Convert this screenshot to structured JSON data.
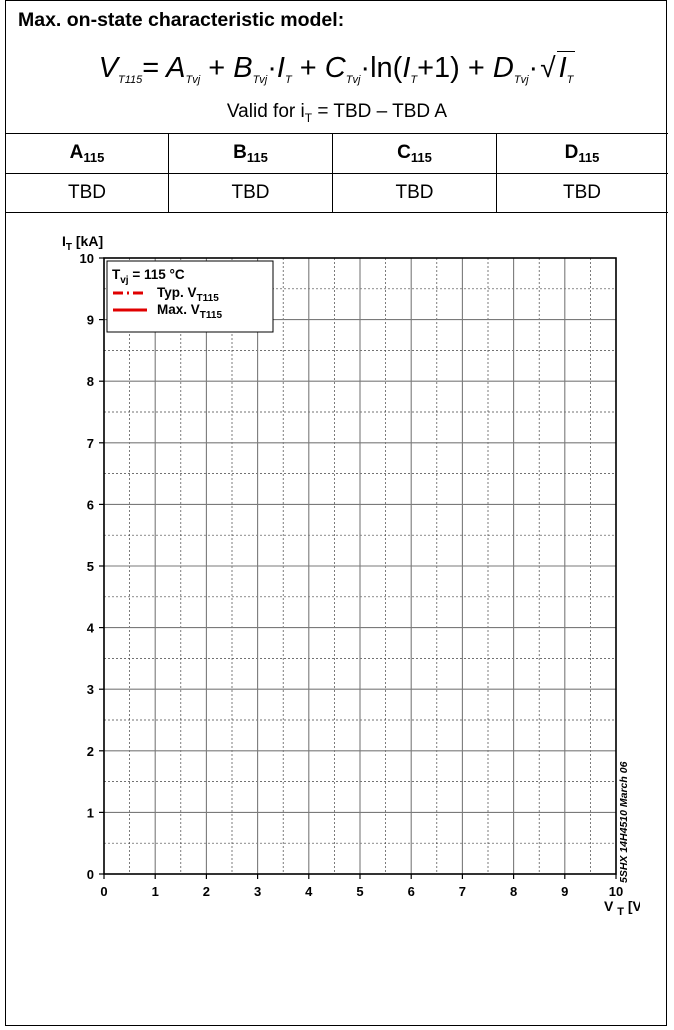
{
  "title": "Max. on-state characteristic model:",
  "formula": {
    "lhs": "V",
    "lhs_sub": "T115",
    "eq": "=",
    "terms": [
      "A",
      "B",
      "C",
      "D"
    ],
    "term_sub": "Tvj",
    "var": "I",
    "var_sub": "T",
    "plus": "+",
    "dot": "·",
    "ln": "ln(",
    "one": "+1)",
    "sqrt": "√"
  },
  "valid": {
    "prefix": "Valid for i",
    "sub": "T",
    "suffix": " = TBD – TBD A"
  },
  "table": {
    "headers": [
      {
        "main": "A",
        "sub": "115"
      },
      {
        "main": "B",
        "sub": "115"
      },
      {
        "main": "C",
        "sub": "115"
      },
      {
        "main": "D",
        "sub": "115"
      }
    ],
    "values": [
      "TBD",
      "TBD",
      "TBD",
      "TBD"
    ]
  },
  "chart_data": {
    "type": "line",
    "xlabel": "V",
    "xlabel_sub": "T",
    "xlabel_unit": "[V]",
    "ylabel": "I",
    "ylabel_sub": "T",
    "ylabel_unit": "[kA]",
    "xlim": [
      0,
      10
    ],
    "ylim": [
      0,
      10
    ],
    "x_ticks": [
      0,
      1,
      2,
      3,
      4,
      5,
      6,
      7,
      8,
      9,
      10
    ],
    "y_ticks": [
      0,
      1,
      2,
      3,
      4,
      5,
      6,
      7,
      8,
      9,
      10
    ],
    "grid": "major solid, minor dotted",
    "legend": {
      "placement": "top-left",
      "header": "T",
      "header_sub": "vj",
      "header_suffix": " = 115 °C",
      "entries": [
        {
          "label": "Typ. V",
          "label_sub": "T115",
          "style": "dash-dot",
          "color": "#e00000"
        },
        {
          "label": "Max. V",
          "label_sub": "T115",
          "style": "solid",
          "color": "#e00000"
        }
      ]
    },
    "series": []
  },
  "stamp": "5SHX 14H4510 March 06"
}
